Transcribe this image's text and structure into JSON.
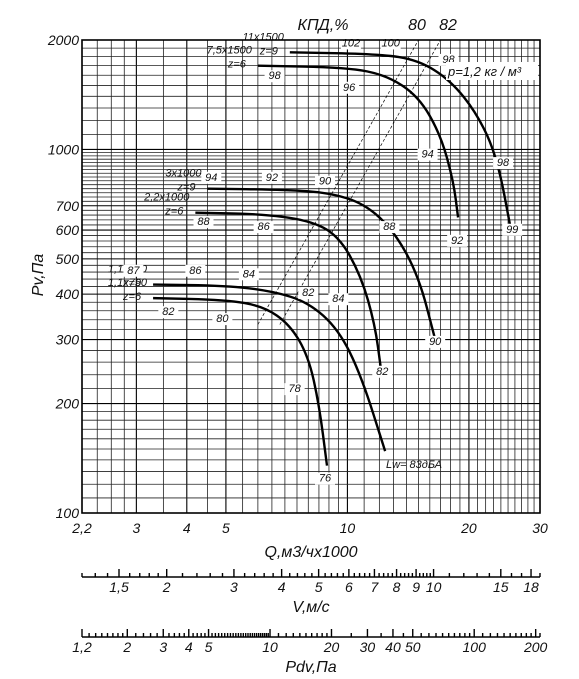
{
  "chart_data": {
    "type": "line",
    "title": "КПД,%",
    "xlabel": "Q,м3/чх1000",
    "ylabel": "Pv,Па",
    "x_scale": "log",
    "y_scale": "log",
    "xlim": [
      2.2,
      30
    ],
    "ylim": [
      100,
      2000
    ],
    "x_ticks": [
      "2,2",
      "3",
      "4",
      "5",
      "10",
      "20",
      "30"
    ],
    "x_tick_values": [
      2.2,
      3,
      4,
      5,
      10,
      20,
      30
    ],
    "y_ticks": [
      "2000",
      "1000",
      "700",
      "600",
      "500",
      "400",
      "300",
      "200",
      "100"
    ],
    "y_tick_values": [
      2000,
      1000,
      700,
      600,
      500,
      400,
      300,
      200,
      100
    ],
    "efficiency_labels": [
      "80",
      "82"
    ],
    "density_label": "p=1,2 кг / м³",
    "noise_label": "Lw= 83дБА",
    "series": [
      {
        "name": "11x1500",
        "label2": "z=9",
        "points": [
          [
            7.2,
            1850
          ],
          [
            12,
            1830
          ],
          [
            15,
            1760
          ],
          [
            18,
            1550
          ],
          [
            21,
            1250
          ],
          [
            23.5,
            950
          ],
          [
            25.5,
            590
          ]
        ],
        "eff_labels": [
          {
            "t": "102",
            "x": 10.2,
            "y": 1920
          },
          {
            "t": "100",
            "x": 12.8,
            "y": 1920
          },
          {
            "t": "98",
            "x": 17.8,
            "y": 1730
          },
          {
            "t": "98",
            "x": 24.3,
            "y": 900
          },
          {
            "t": "99",
            "x": 25.6,
            "y": 590
          }
        ]
      },
      {
        "name": "7,5x1500",
        "label2": "z=6",
        "points": [
          [
            6,
            1700
          ],
          [
            10,
            1680
          ],
          [
            12.5,
            1600
          ],
          [
            15,
            1400
          ],
          [
            17,
            1100
          ],
          [
            18.3,
            820
          ],
          [
            18.8,
            650
          ]
        ],
        "eff_labels": [
          {
            "t": "98",
            "x": 6.6,
            "y": 1560
          },
          {
            "t": "96",
            "x": 10.1,
            "y": 1450
          },
          {
            "t": "94",
            "x": 15.8,
            "y": 950
          },
          {
            "t": "92",
            "x": 18.7,
            "y": 550
          }
        ]
      },
      {
        "name": "3x1000",
        "label2": "z=9",
        "points": [
          [
            4.5,
            780
          ],
          [
            7,
            775
          ],
          [
            9,
            760
          ],
          [
            11,
            710
          ],
          [
            13,
            600
          ],
          [
            15,
            450
          ],
          [
            16.5,
            300
          ]
        ],
        "eff_labels": [
          {
            "t": "94",
            "x": 4.6,
            "y": 820
          },
          {
            "t": "92",
            "x": 6.5,
            "y": 820
          },
          {
            "t": "90",
            "x": 8.8,
            "y": 800
          },
          {
            "t": "88",
            "x": 12.7,
            "y": 600
          },
          {
            "t": "90",
            "x": 16.5,
            "y": 290
          }
        ]
      },
      {
        "name": "2,2x1000",
        "label2": "z=6",
        "points": [
          [
            4.2,
            670
          ],
          [
            6,
            665
          ],
          [
            8,
            640
          ],
          [
            9.5,
            580
          ],
          [
            10.8,
            450
          ],
          [
            11.7,
            330
          ],
          [
            12.1,
            250
          ]
        ],
        "eff_labels": [
          {
            "t": "88",
            "x": 4.4,
            "y": 620
          },
          {
            "t": "86",
            "x": 6.2,
            "y": 600
          },
          {
            "t": "84",
            "x": 9.5,
            "y": 380
          },
          {
            "t": "82",
            "x": 12.2,
            "y": 240
          }
        ]
      },
      {
        "name": "1,1x750",
        "label2": "z=9",
        "points": [
          [
            3.3,
            425
          ],
          [
            5,
            422
          ],
          [
            6.5,
            408
          ],
          [
            8,
            380
          ],
          [
            9.5,
            320
          ],
          [
            10.8,
            240
          ],
          [
            12.4,
            148
          ]
        ],
        "eff_labels": [
          {
            "t": "87",
            "x": 2.95,
            "y": 455
          },
          {
            "t": "86",
            "x": 4.2,
            "y": 455
          },
          {
            "t": "84",
            "x": 5.7,
            "y": 445
          },
          {
            "t": "82",
            "x": 8,
            "y": 395
          }
        ]
      },
      {
        "name": "1,1x750",
        "label2": "z=6",
        "points": [
          [
            3.3,
            390
          ],
          [
            5,
            386
          ],
          [
            6.2,
            370
          ],
          [
            7.2,
            330
          ],
          [
            8,
            270
          ],
          [
            8.5,
            200
          ],
          [
            8.9,
            135
          ]
        ],
        "eff_labels": [
          {
            "t": "82",
            "x": 3.6,
            "y": 350
          },
          {
            "t": "80",
            "x": 4.9,
            "y": 335
          },
          {
            "t": "78",
            "x": 7.4,
            "y": 215
          },
          {
            "t": "76",
            "x": 8.8,
            "y": 122
          }
        ]
      }
    ],
    "efficiency_lines": [
      {
        "label": "80",
        "from": [
          6,
          330
        ],
        "to": [
          15,
          2000
        ]
      },
      {
        "label": "82",
        "from": [
          6.8,
          330
        ],
        "to": [
          17,
          2000
        ]
      }
    ],
    "secondary_axes": [
      {
        "xlabel": "V,м/с",
        "ticks": [
          "1,5",
          "2",
          "3",
          "4",
          "5",
          "6",
          "7",
          "8",
          "9",
          "10",
          "15",
          "18"
        ],
        "tick_values": [
          1.5,
          2,
          3,
          4,
          5,
          6,
          7,
          8,
          9,
          10,
          15,
          18
        ],
        "range": [
          1.2,
          19
        ]
      },
      {
        "xlabel": "Pdv,Па",
        "ticks": [
          "1,2",
          "2",
          "3",
          "4",
          "5",
          "10",
          "20",
          "30",
          "40",
          "50",
          "100",
          "200"
        ],
        "tick_values": [
          1.2,
          2,
          3,
          4,
          5,
          10,
          20,
          30,
          40,
          50,
          100,
          200
        ],
        "range": [
          1.2,
          210
        ]
      }
    ]
  }
}
